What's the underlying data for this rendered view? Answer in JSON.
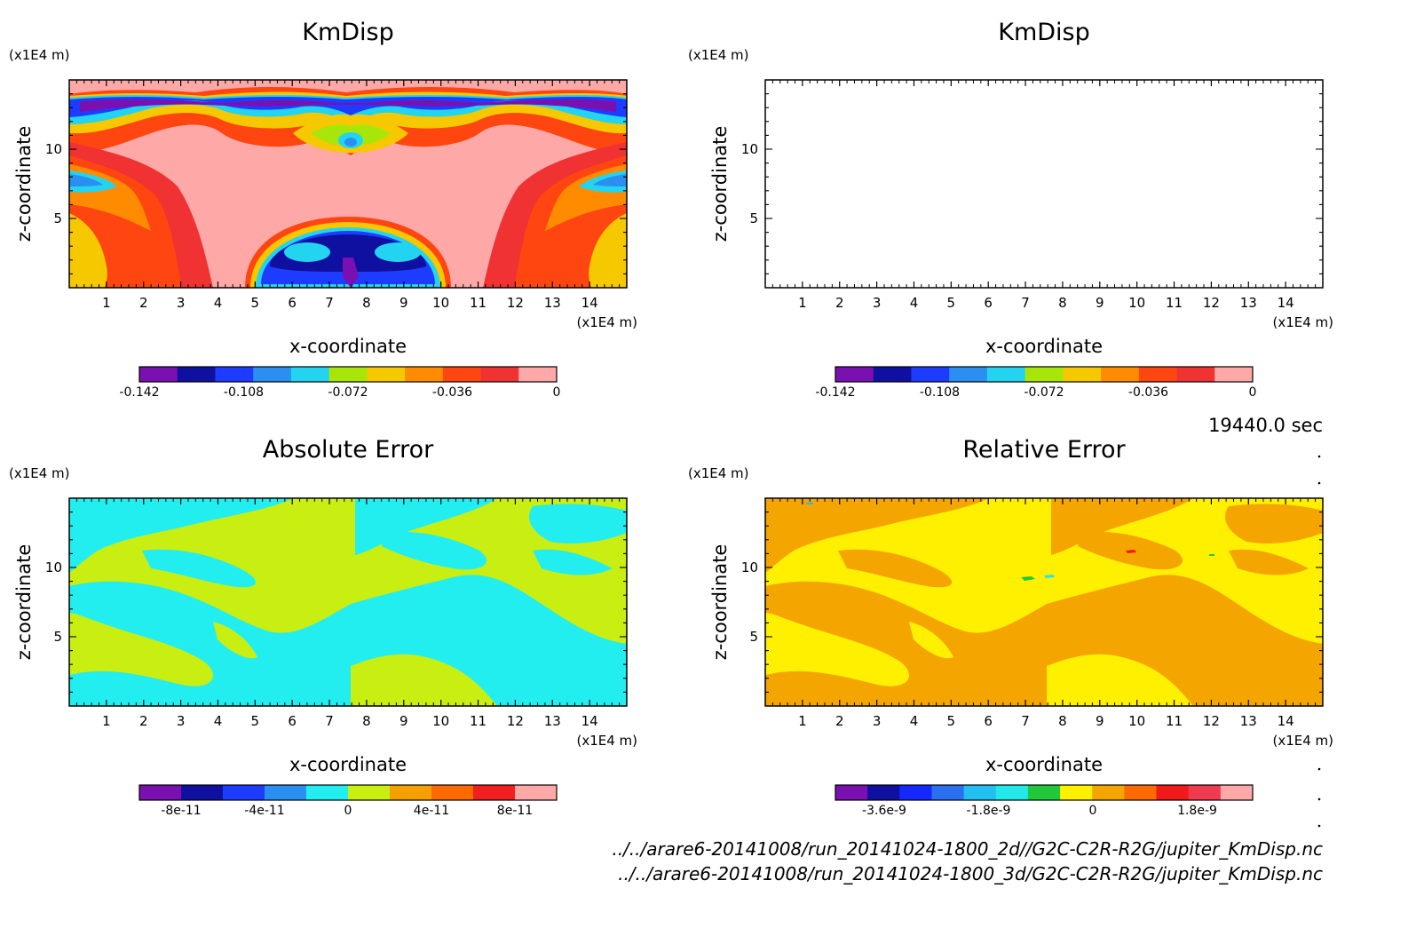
{
  "time_label": "19440.0 sec",
  "files": [
    "../../arare6-20141008/run_20141024-1800_2d//G2C-C2R-R2G/jupiter_KmDisp.nc",
    "../../arare6-20141008/run_20141024-1800_3d/G2C-C2R-R2G/jupiter_KmDisp.nc"
  ],
  "chart_data": [
    {
      "type": "heatmap",
      "title": "KmDisp",
      "xlabel": "x-coordinate",
      "ylabel": "z-coordinate",
      "x_unit": "(x1E4 m)",
      "y_unit": "(x1E4 m)",
      "xlim": [
        0,
        15
      ],
      "ylim": [
        0,
        15
      ],
      "xticks": [
        1,
        2,
        3,
        4,
        5,
        6,
        7,
        8,
        9,
        10,
        11,
        12,
        13,
        14
      ],
      "yticks": [
        5,
        10
      ],
      "colorbar": {
        "colors": [
          "#7a10b0",
          "#1010a0",
          "#1e3cff",
          "#2a8ff0",
          "#22d4ef",
          "#a8e60a",
          "#f5c800",
          "#ff8c00",
          "#ff4610",
          "#f03232",
          "#ffa8a8"
        ],
        "tick_labels": [
          "-0.142",
          "-0.108",
          "-0.072",
          "-0.036",
          "0"
        ]
      }
    },
    {
      "type": "heatmap",
      "title": "KmDisp",
      "xlabel": "x-coordinate",
      "ylabel": "z-coordinate",
      "x_unit": "(x1E4 m)",
      "y_unit": "(x1E4 m)",
      "xlim": [
        0,
        15
      ],
      "ylim": [
        0,
        15
      ],
      "xticks": [
        1,
        2,
        3,
        4,
        5,
        6,
        7,
        8,
        9,
        10,
        11,
        12,
        13,
        14
      ],
      "yticks": [
        5,
        10
      ],
      "colorbar": {
        "colors": [
          "#7a10b0",
          "#1010a0",
          "#1e3cff",
          "#2a8ff0",
          "#22d4ef",
          "#a8e60a",
          "#f5c800",
          "#ff8c00",
          "#ff4610",
          "#f03232",
          "#ffa8a8"
        ],
        "tick_labels": [
          "-0.142",
          "-0.108",
          "-0.072",
          "-0.036",
          "0"
        ]
      }
    },
    {
      "type": "heatmap",
      "title": "Absolute Error",
      "xlabel": "x-coordinate",
      "ylabel": "z-coordinate",
      "x_unit": "(x1E4 m)",
      "y_unit": "(x1E4 m)",
      "xlim": [
        0,
        15
      ],
      "ylim": [
        0,
        15
      ],
      "xticks": [
        1,
        2,
        3,
        4,
        5,
        6,
        7,
        8,
        9,
        10,
        11,
        12,
        13,
        14
      ],
      "yticks": [
        5,
        10
      ],
      "colorbar": {
        "colors": [
          "#7a10b0",
          "#1010a0",
          "#1e3cff",
          "#2a8ff0",
          "#22eef0",
          "#c8ee12",
          "#f5a000",
          "#ff6a00",
          "#f02020",
          "#ffa8a8"
        ],
        "tick_labels": [
          "-8e-11",
          "-4e-11",
          "0",
          "4e-11",
          "8e-11"
        ]
      }
    },
    {
      "type": "heatmap",
      "title": "Relative Error",
      "xlabel": "x-coordinate",
      "ylabel": "z-coordinate",
      "x_unit": "(x1E4 m)",
      "y_unit": "(x1E4 m)",
      "xlim": [
        0,
        15
      ],
      "ylim": [
        0,
        15
      ],
      "xticks": [
        1,
        2,
        3,
        4,
        5,
        6,
        7,
        8,
        9,
        10,
        11,
        12,
        13,
        14
      ],
      "yticks": [
        5,
        10
      ],
      "colorbar": {
        "colors": [
          "#7a10b0",
          "#1010a0",
          "#1428ff",
          "#2a70f0",
          "#22bff0",
          "#22e8e8",
          "#22c83c",
          "#fff000",
          "#f5a500",
          "#ff6a00",
          "#f01a1a",
          "#f03a50",
          "#ffa8a8"
        ],
        "tick_labels": [
          "-3.6e-9",
          "-1.8e-9",
          "0",
          "1.8e-9"
        ]
      }
    }
  ]
}
